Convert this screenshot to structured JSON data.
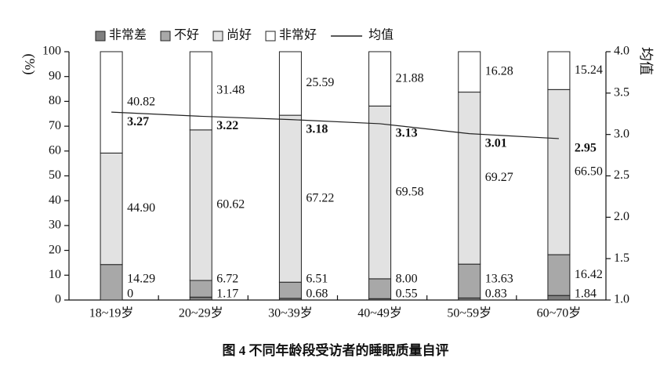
{
  "chart_data": {
    "type": "stacked-bar-line",
    "title": "图 4   不同年龄段受访者的睡眠质量自评",
    "ylabel": "(%)",
    "y2label": "均值",
    "categories": [
      "18~19岁",
      "20~29岁",
      "30~39岁",
      "40~49岁",
      "50~59岁",
      "60~70岁"
    ],
    "series": [
      {
        "name": "非常差",
        "color": "#7f7f7f",
        "values": [
          0,
          1.17,
          0.68,
          0.55,
          0.83,
          1.84
        ],
        "value_labels": [
          "0",
          "1.17",
          "0.68",
          "0.55",
          "0.83",
          "1.84"
        ]
      },
      {
        "name": "不好",
        "color": "#a8a8a8",
        "values": [
          14.29,
          6.72,
          6.51,
          8.0,
          13.63,
          16.42
        ],
        "value_labels": [
          "14.29",
          "6.72",
          "6.51",
          "8.00",
          "13.63",
          "16.42"
        ]
      },
      {
        "name": "尚好",
        "color": "#e2e2e2",
        "values": [
          44.9,
          60.62,
          67.22,
          69.58,
          69.27,
          66.5
        ],
        "value_labels": [
          "44.90",
          "60.62",
          "67.22",
          "69.58",
          "69.27",
          "66.50"
        ]
      },
      {
        "name": "非常好",
        "color": "#ffffff",
        "values": [
          40.82,
          31.48,
          25.59,
          21.88,
          16.28,
          15.24
        ],
        "value_labels": [
          "40.82",
          "31.48",
          "25.59",
          "21.88",
          "16.28",
          "15.24"
        ]
      },
      {
        "name": "均值",
        "color": "#222222",
        "axis": "y2",
        "type": "line",
        "values": [
          3.27,
          3.22,
          3.18,
          3.13,
          3.01,
          2.95
        ]
      }
    ],
    "ylim": [
      0,
      100
    ],
    "yticks": [
      0,
      10,
      20,
      30,
      40,
      50,
      60,
      70,
      80,
      90,
      100
    ],
    "y2lim": [
      1,
      4
    ],
    "y2ticks": [
      {
        "value": 1,
        "label": "1.0"
      },
      {
        "value": 1.5,
        "label": "1.5"
      },
      {
        "value": 2,
        "label": "2.0"
      },
      {
        "value": 2.5,
        "label": "2.5"
      },
      {
        "value": 3,
        "label": "3.0"
      },
      {
        "value": 3.5,
        "label": "3.5"
      },
      {
        "value": 4,
        "label": "4.0"
      }
    ]
  }
}
